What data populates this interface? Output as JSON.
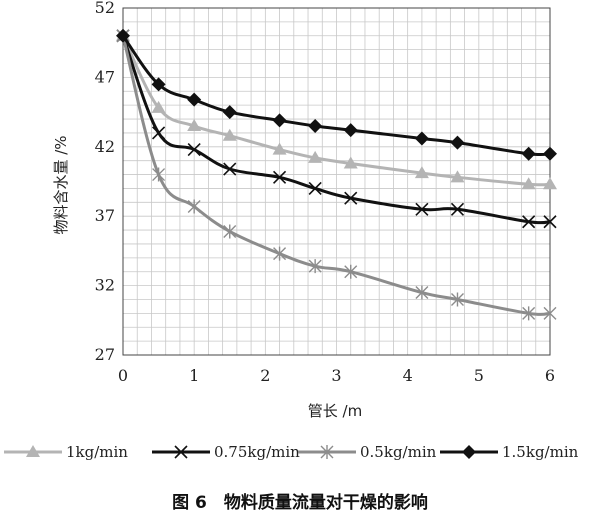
{
  "chart_data": {
    "type": "line",
    "xlabel": "管长 /m",
    "ylabel": "物料含水量 /%",
    "xlim": [
      0,
      6
    ],
    "ylim": [
      27,
      52
    ],
    "xticks": [
      0,
      1,
      2,
      3,
      4,
      5,
      6
    ],
    "yticks": [
      27,
      32,
      37,
      42,
      47,
      52
    ],
    "grid": true,
    "legend_position": "bottom",
    "series": [
      {
        "name": "1kg/min",
        "color": "#b4b4b4",
        "marker": "triangle",
        "x": [
          0,
          0.5,
          1.0,
          1.5,
          2.2,
          2.7,
          3.2,
          4.2,
          4.7,
          5.7,
          6.0
        ],
        "y": [
          50.0,
          44.8,
          43.5,
          42.8,
          41.8,
          41.2,
          40.8,
          40.1,
          39.8,
          39.3,
          39.3
        ]
      },
      {
        "name": "0.75kg/min",
        "color": "#111111",
        "marker": "x",
        "x": [
          0,
          0.5,
          1.0,
          1.5,
          2.2,
          2.7,
          3.2,
          4.2,
          4.7,
          5.7,
          6.0
        ],
        "y": [
          50.0,
          43.0,
          41.8,
          40.4,
          39.8,
          39.0,
          38.3,
          37.5,
          37.5,
          36.6,
          36.6
        ]
      },
      {
        "name": "0.5kg/min",
        "color": "#8c8c8c",
        "marker": "asterisk",
        "x": [
          0,
          0.5,
          1.0,
          1.5,
          2.2,
          2.7,
          3.2,
          4.2,
          4.7,
          5.7,
          6.0
        ],
        "y": [
          50.0,
          40.0,
          37.7,
          35.9,
          34.3,
          33.4,
          33.0,
          31.5,
          31.0,
          30.0,
          30.0
        ]
      },
      {
        "name": "1.5kg/min",
        "color": "#111111",
        "marker": "diamond",
        "x": [
          0,
          0.5,
          1.0,
          1.5,
          2.2,
          2.7,
          3.2,
          4.2,
          4.7,
          5.7,
          6.0
        ],
        "y": [
          50.0,
          46.5,
          45.4,
          44.5,
          43.9,
          43.5,
          43.2,
          42.6,
          42.3,
          41.5,
          41.5
        ]
      }
    ]
  },
  "caption": "图 6　物料质量流量对干燥的影响"
}
